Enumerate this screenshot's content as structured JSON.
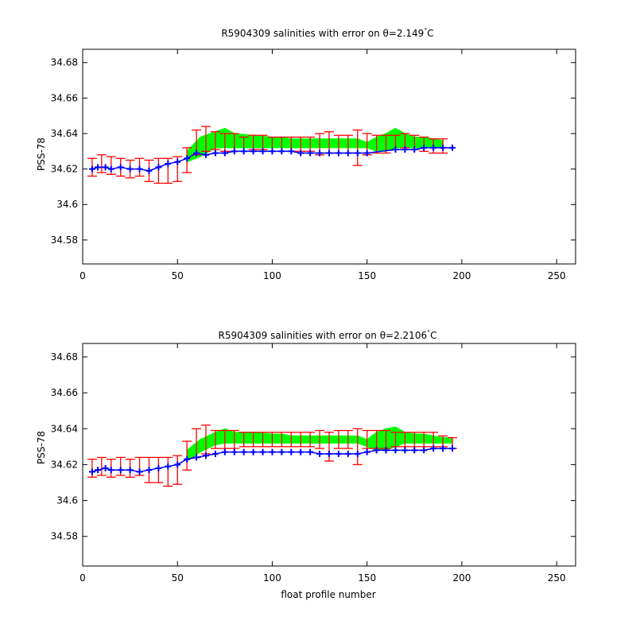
{
  "chart_data": [
    {
      "type": "scatter",
      "title": "R5904309 salinities with error on θ=2.149°C",
      "title_main": "R5904309 salinities with error on θ=2.149",
      "title_unit": "C",
      "xlabel": "",
      "ylabel": "PSS-78",
      "xlim": [
        0,
        260
      ],
      "ylim": [
        34.5665,
        34.6875
      ],
      "xticks": [
        "0",
        "50",
        "100",
        "150",
        "200",
        "250"
      ],
      "yticks": [
        "34.58",
        "34.6",
        "34.62",
        "34.64",
        "34.66",
        "34.68"
      ],
      "grid": false,
      "colors": {
        "error_bars": "#ff0000",
        "calibrated_band": "#00ff00",
        "float_salinity": "#0000ff"
      },
      "series": [
        {
          "style": "error-bars",
          "x": [
            5,
            10,
            15,
            20,
            25,
            30,
            35,
            40,
            45,
            50,
            55,
            60,
            65,
            70,
            75,
            80,
            85,
            90,
            95,
            100,
            105,
            110,
            115,
            120,
            125,
            130,
            135,
            140,
            145,
            150,
            155,
            160,
            165,
            170,
            175,
            180,
            185,
            190
          ],
          "y": [
            34.621,
            34.623,
            34.622,
            34.621,
            34.62,
            34.621,
            34.619,
            34.619,
            34.619,
            34.62,
            34.625,
            34.635,
            34.637,
            34.636,
            34.635,
            34.635,
            34.634,
            34.635,
            34.635,
            34.634,
            34.634,
            34.634,
            34.634,
            34.634,
            34.634,
            34.635,
            34.634,
            34.634,
            34.632,
            34.634,
            34.634,
            34.634,
            34.635,
            34.636,
            34.635,
            34.634,
            34.633,
            34.633
          ],
          "err": [
            0.005,
            0.005,
            0.005,
            0.005,
            0.005,
            0.005,
            0.006,
            0.007,
            0.007,
            0.007,
            0.007,
            0.007,
            0.007,
            0.005,
            0.005,
            0.005,
            0.004,
            0.004,
            0.004,
            0.004,
            0.004,
            0.004,
            0.004,
            0.004,
            0.006,
            0.006,
            0.005,
            0.005,
            0.01,
            0.006,
            0.005,
            0.005,
            0.004,
            0.004,
            0.004,
            0.004,
            0.004,
            0.004
          ]
        },
        {
          "style": "band",
          "x": [
            55,
            62,
            70,
            75,
            80,
            90,
            100,
            105,
            110,
            120,
            130,
            140,
            145,
            150,
            155,
            160,
            165,
            170,
            175,
            180,
            185,
            190
          ],
          "y_low": [
            34.624,
            34.627,
            34.632,
            34.632,
            34.632,
            34.632,
            34.632,
            34.632,
            34.632,
            34.632,
            34.632,
            34.632,
            34.632,
            34.632,
            34.63,
            34.63,
            34.632,
            34.632,
            34.632,
            34.632,
            34.632,
            34.632
          ],
          "y_high": [
            34.63,
            34.638,
            34.641,
            34.643,
            34.64,
            34.639,
            34.638,
            34.638,
            34.637,
            34.637,
            34.637,
            34.637,
            34.637,
            34.635,
            34.638,
            34.64,
            34.643,
            34.64,
            34.638,
            34.638,
            34.637,
            34.636
          ]
        },
        {
          "style": "markers",
          "x": [
            5,
            8,
            12,
            15,
            20,
            25,
            30,
            35,
            40,
            45,
            50,
            55,
            60,
            65,
            70,
            75,
            80,
            85,
            90,
            95,
            100,
            105,
            110,
            115,
            120,
            125,
            130,
            135,
            140,
            145,
            150,
            165,
            170,
            175,
            180,
            185,
            190,
            195
          ],
          "y": [
            34.62,
            34.621,
            34.621,
            34.62,
            34.621,
            34.62,
            34.62,
            34.619,
            34.621,
            34.623,
            34.624,
            34.626,
            34.629,
            34.628,
            34.629,
            34.629,
            34.63,
            34.63,
            34.63,
            34.63,
            34.63,
            34.63,
            34.63,
            34.629,
            34.629,
            34.629,
            34.629,
            34.629,
            34.629,
            34.629,
            34.629,
            34.631,
            34.631,
            34.631,
            34.632,
            34.632,
            34.632,
            34.632
          ]
        }
      ]
    },
    {
      "type": "scatter",
      "title": "R5904309 salinities with error on θ=2.2106°C",
      "title_main": "R5904309 salinities with error on θ=2.2106",
      "title_unit": "C",
      "xlabel": "float profile number",
      "ylabel": "PSS-78",
      "xlim": [
        0,
        260
      ],
      "ylim": [
        34.5635,
        34.6875
      ],
      "xticks": [
        "0",
        "50",
        "100",
        "150",
        "200",
        "250"
      ],
      "yticks": [
        "34.58",
        "34.6",
        "34.62",
        "34.64",
        "34.66",
        "34.68"
      ],
      "grid": false,
      "colors": {
        "error_bars": "#ff0000",
        "calibrated_band": "#00ff00",
        "float_salinity": "#0000ff"
      },
      "series": [
        {
          "style": "error-bars",
          "x": [
            5,
            10,
            15,
            20,
            25,
            30,
            35,
            40,
            45,
            50,
            55,
            60,
            65,
            70,
            75,
            80,
            85,
            90,
            95,
            100,
            105,
            110,
            115,
            120,
            125,
            130,
            135,
            140,
            145,
            150,
            155,
            160,
            165,
            170,
            175,
            180,
            185,
            190,
            195
          ],
          "y": [
            34.618,
            34.619,
            34.618,
            34.619,
            34.618,
            34.619,
            34.617,
            34.617,
            34.616,
            34.617,
            34.625,
            34.632,
            34.634,
            34.634,
            34.634,
            34.634,
            34.634,
            34.634,
            34.634,
            34.634,
            34.634,
            34.634,
            34.634,
            34.634,
            34.634,
            34.63,
            34.634,
            34.634,
            34.63,
            34.634,
            34.634,
            34.634,
            34.634,
            34.634,
            34.634,
            34.634,
            34.634,
            34.633,
            34.632
          ],
          "err": [
            0.005,
            0.005,
            0.005,
            0.005,
            0.005,
            0.005,
            0.007,
            0.007,
            0.008,
            0.008,
            0.008,
            0.008,
            0.008,
            0.005,
            0.005,
            0.005,
            0.004,
            0.004,
            0.004,
            0.004,
            0.004,
            0.004,
            0.004,
            0.004,
            0.005,
            0.008,
            0.005,
            0.005,
            0.01,
            0.005,
            0.005,
            0.005,
            0.004,
            0.004,
            0.004,
            0.004,
            0.004,
            0.003,
            0.003
          ]
        },
        {
          "style": "band",
          "x": [
            55,
            62,
            70,
            75,
            80,
            90,
            100,
            105,
            110,
            120,
            130,
            140,
            145,
            150,
            155,
            160,
            165,
            170,
            175,
            180,
            185,
            190,
            195
          ],
          "y_low": [
            34.622,
            34.627,
            34.631,
            34.632,
            34.632,
            34.632,
            34.632,
            34.632,
            34.632,
            34.632,
            34.632,
            34.632,
            34.632,
            34.63,
            34.628,
            34.628,
            34.63,
            34.632,
            34.632,
            34.632,
            34.632,
            34.632,
            34.632
          ],
          "y_high": [
            34.628,
            34.634,
            34.638,
            34.64,
            34.638,
            34.638,
            34.637,
            34.637,
            34.636,
            34.636,
            34.636,
            34.636,
            34.636,
            34.634,
            34.638,
            34.64,
            34.641,
            34.638,
            34.637,
            34.637,
            34.636,
            34.635,
            34.635
          ]
        },
        {
          "style": "markers",
          "x": [
            5,
            8,
            12,
            15,
            20,
            25,
            30,
            35,
            40,
            45,
            50,
            55,
            60,
            65,
            70,
            75,
            80,
            85,
            90,
            95,
            100,
            105,
            110,
            115,
            120,
            125,
            130,
            135,
            140,
            145,
            150,
            155,
            160,
            165,
            170,
            175,
            180,
            185,
            190,
            195
          ],
          "y": [
            34.616,
            34.617,
            34.618,
            34.617,
            34.617,
            34.617,
            34.616,
            34.617,
            34.618,
            34.619,
            34.62,
            34.623,
            34.624,
            34.625,
            34.626,
            34.627,
            34.627,
            34.627,
            34.627,
            34.627,
            34.627,
            34.627,
            34.627,
            34.627,
            34.627,
            34.626,
            34.626,
            34.626,
            34.626,
            34.626,
            34.627,
            34.628,
            34.628,
            34.628,
            34.628,
            34.628,
            34.628,
            34.629,
            34.629,
            34.629
          ]
        }
      ]
    }
  ]
}
